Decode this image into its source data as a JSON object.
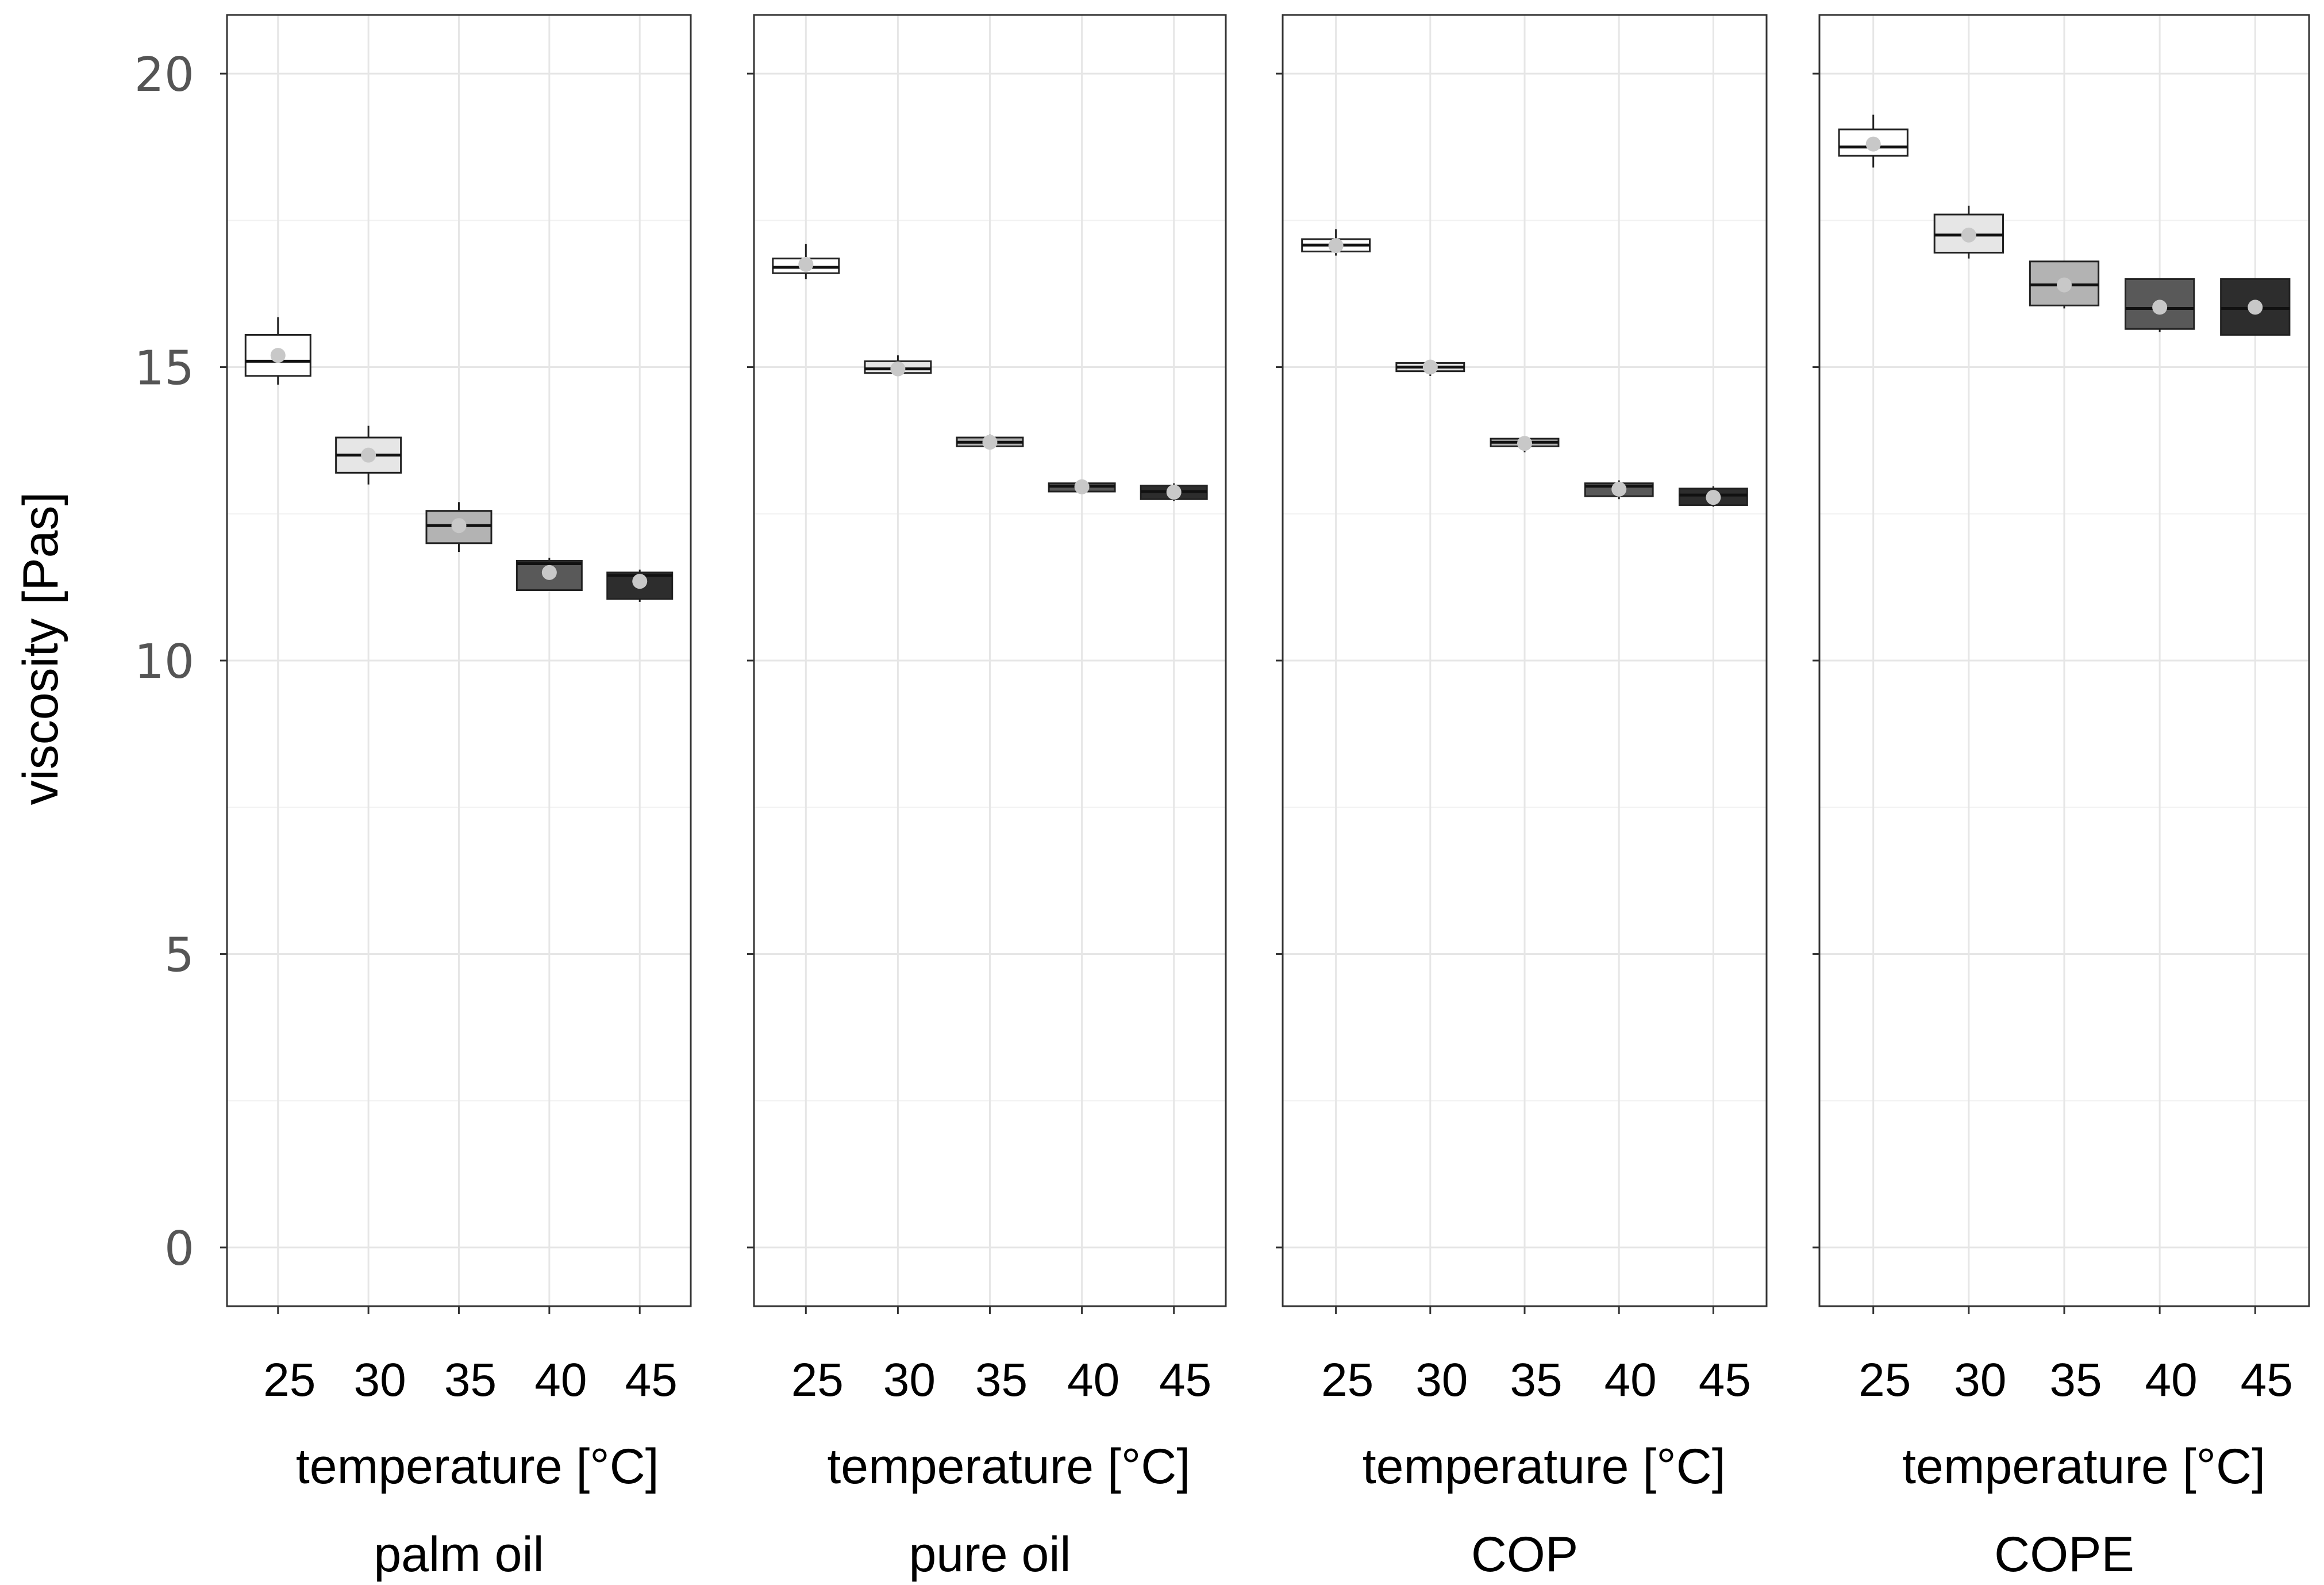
{
  "chart_data": {
    "type": "box",
    "ylabel": "viscosity  [Pas]",
    "xlabel": "temperature [°C]",
    "ylim": [
      -1,
      21
    ],
    "yticks": [
      0,
      5,
      10,
      15,
      20
    ],
    "categories": [
      "25",
      "30",
      "35",
      "40",
      "45"
    ],
    "grid": true,
    "fills": [
      "#ffffff",
      "#e6e6e6",
      "#b3b3b3",
      "#595959",
      "#2d2d2d"
    ],
    "mean_marker_color": "#c8c8c8",
    "panels": [
      {
        "name": "palm oil",
        "boxes": [
          {
            "min": 14.7,
            "q1": 14.85,
            "median": 15.1,
            "q3": 15.55,
            "max": 15.85,
            "mean": 15.2
          },
          {
            "min": 13.0,
            "q1": 13.2,
            "median": 13.5,
            "q3": 13.8,
            "max": 14.0,
            "mean": 13.5
          },
          {
            "min": 11.85,
            "q1": 12.0,
            "median": 12.3,
            "q3": 12.55,
            "max": 12.7,
            "mean": 12.3
          },
          {
            "min": 11.2,
            "q1": 11.2,
            "median": 11.65,
            "q3": 11.7,
            "max": 11.75,
            "mean": 11.5
          },
          {
            "min": 11.0,
            "q1": 11.05,
            "median": 11.45,
            "q3": 11.5,
            "max": 11.55,
            "mean": 11.35
          }
        ]
      },
      {
        "name": "pure oil",
        "boxes": [
          {
            "min": 16.5,
            "q1": 16.6,
            "median": 16.7,
            "q3": 16.85,
            "max": 17.1,
            "mean": 16.75
          },
          {
            "min": 14.85,
            "q1": 14.9,
            "median": 14.97,
            "q3": 15.1,
            "max": 15.2,
            "mean": 14.97
          },
          {
            "min": 13.6,
            "q1": 13.65,
            "median": 13.72,
            "q3": 13.8,
            "max": 13.85,
            "mean": 13.72
          },
          {
            "min": 12.85,
            "q1": 12.88,
            "median": 12.97,
            "q3": 13.02,
            "max": 13.05,
            "mean": 12.96
          },
          {
            "min": 12.72,
            "q1": 12.75,
            "median": 12.88,
            "q3": 12.98,
            "max": 13.02,
            "mean": 12.87
          }
        ]
      },
      {
        "name": "COP",
        "boxes": [
          {
            "min": 16.9,
            "q1": 16.97,
            "median": 17.08,
            "q3": 17.18,
            "max": 17.35,
            "mean": 17.07
          },
          {
            "min": 14.85,
            "q1": 14.93,
            "median": 15.0,
            "q3": 15.07,
            "max": 15.12,
            "mean": 15.0
          },
          {
            "min": 13.55,
            "q1": 13.65,
            "median": 13.72,
            "q3": 13.78,
            "max": 13.82,
            "mean": 13.7
          },
          {
            "min": 12.75,
            "q1": 12.8,
            "median": 12.97,
            "q3": 13.02,
            "max": 13.07,
            "mean": 12.92
          },
          {
            "min": 12.62,
            "q1": 12.65,
            "median": 12.82,
            "q3": 12.93,
            "max": 12.97,
            "mean": 12.78
          }
        ]
      },
      {
        "name": "COPE",
        "boxes": [
          {
            "min": 18.4,
            "q1": 18.6,
            "median": 18.75,
            "q3": 19.05,
            "max": 19.3,
            "mean": 18.8
          },
          {
            "min": 16.85,
            "q1": 16.95,
            "median": 17.25,
            "q3": 17.6,
            "max": 17.75,
            "mean": 17.25
          },
          {
            "min": 16.0,
            "q1": 16.05,
            "median": 16.4,
            "q3": 16.8,
            "max": 16.8,
            "mean": 16.4
          },
          {
            "min": 15.6,
            "q1": 15.65,
            "median": 16.0,
            "q3": 16.5,
            "max": 16.5,
            "mean": 16.02
          },
          {
            "min": 15.55,
            "q1": 15.55,
            "median": 16.0,
            "q3": 16.5,
            "max": 16.5,
            "mean": 16.02
          }
        ]
      }
    ]
  }
}
